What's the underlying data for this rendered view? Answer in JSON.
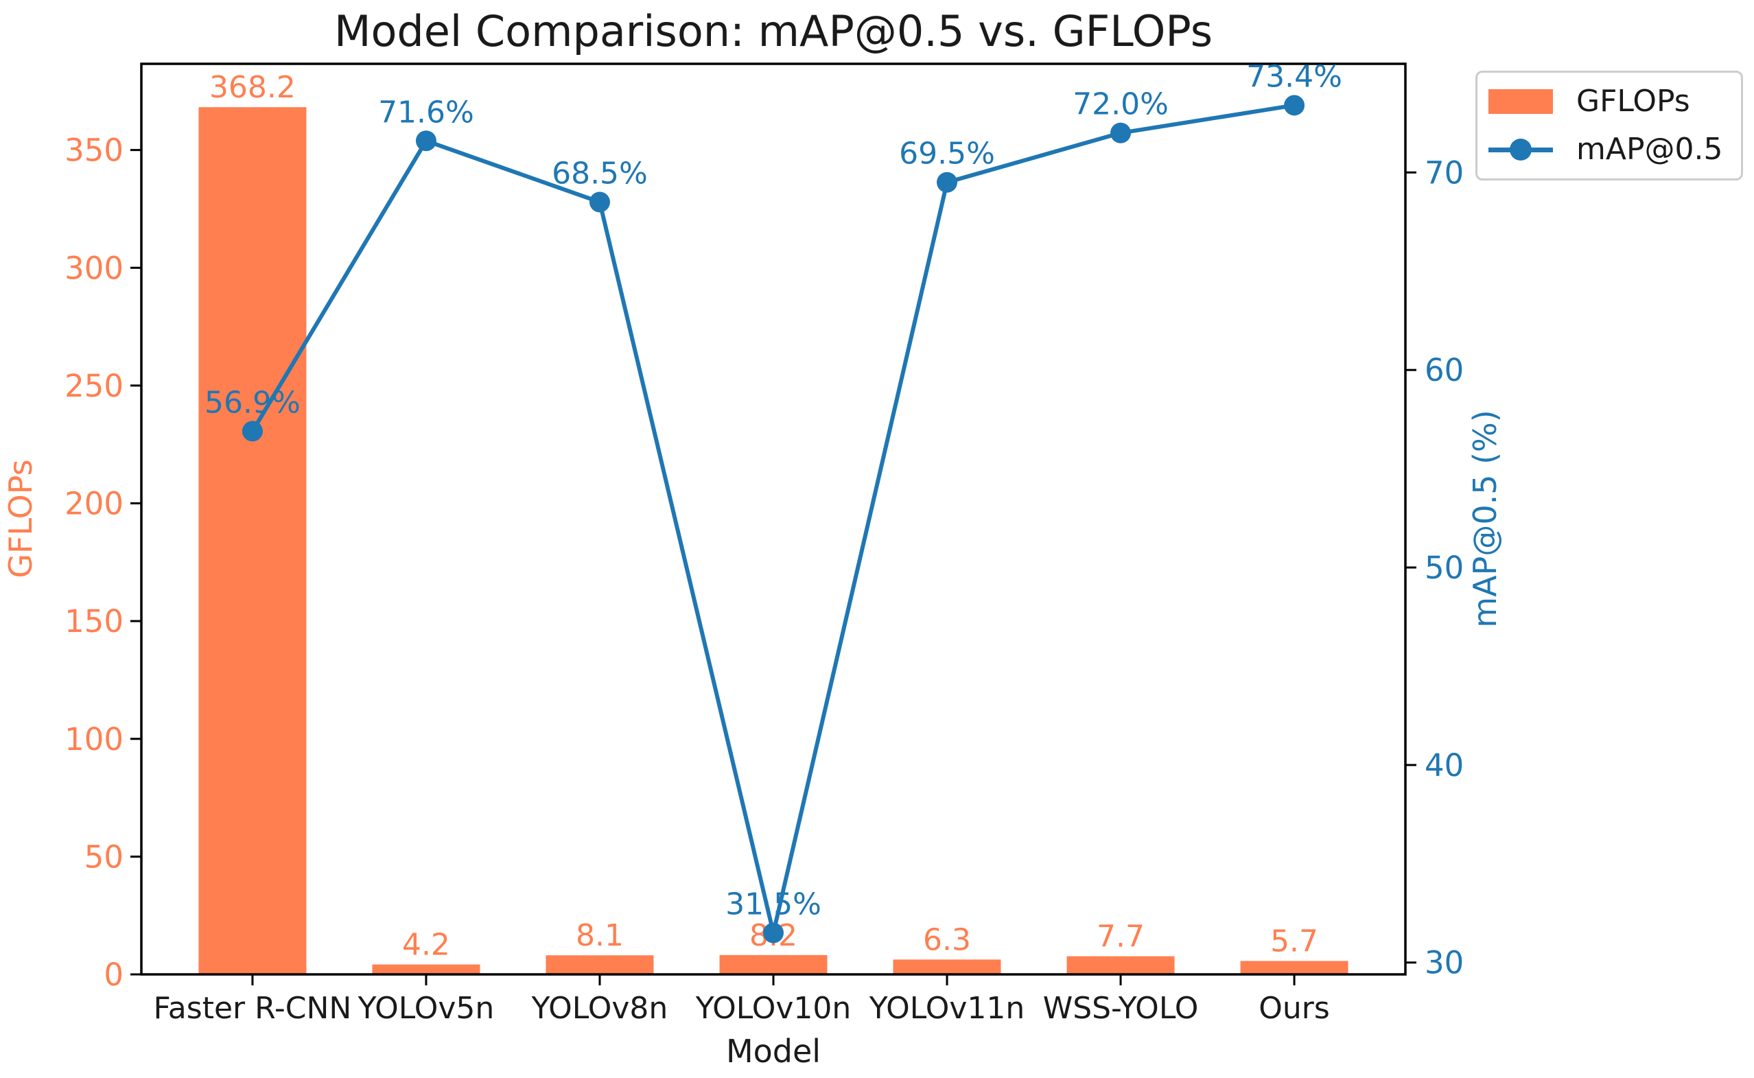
{
  "chart_data": {
    "type": "combo",
    "title": "Model Comparison: mAP@0.5 vs. GFLOPs",
    "xlabel": "Model",
    "categories": [
      "Faster R-CNN",
      "YOLOv5n",
      "YOLOv8n",
      "YOLOv10n",
      "YOLOv11n",
      "WSS-YOLO",
      "Ours"
    ],
    "series": [
      {
        "name": "GFLOPs",
        "type": "bar",
        "axis": "left",
        "color": "#FF7F50",
        "values": [
          368.2,
          4.2,
          8.1,
          8.2,
          6.3,
          7.7,
          5.7
        ],
        "labels": [
          "368.2",
          "4.2",
          "8.1",
          "8.2",
          "6.3",
          "7.7",
          "5.7"
        ]
      },
      {
        "name": "mAP@0.5",
        "type": "line",
        "axis": "right",
        "color": "#1F77B4",
        "values": [
          56.9,
          71.6,
          68.5,
          31.5,
          69.5,
          72.0,
          73.4
        ],
        "labels": [
          "56.9%",
          "71.6%",
          "68.5%",
          "31.5%",
          "69.5%",
          "72.0%",
          "73.4%"
        ]
      }
    ],
    "left_axis": {
      "label": "GFLOPs",
      "color": "#FF7F50",
      "ticks": [
        0,
        50,
        100,
        150,
        200,
        250,
        300,
        350
      ],
      "range": [
        0,
        386.6
      ]
    },
    "right_axis": {
      "label": "mAP@0.5 (%)",
      "color": "#1F77B4",
      "ticks": [
        30,
        40,
        50,
        60,
        70
      ],
      "range": [
        29.4,
        75.5
      ]
    },
    "legend": {
      "position": "outside-upper-right",
      "entries": [
        {
          "label": "GFLOPs",
          "marker": "bar-swatch"
        },
        {
          "label": "mAP@0.5",
          "marker": "line-marker"
        }
      ]
    },
    "grid": false
  }
}
